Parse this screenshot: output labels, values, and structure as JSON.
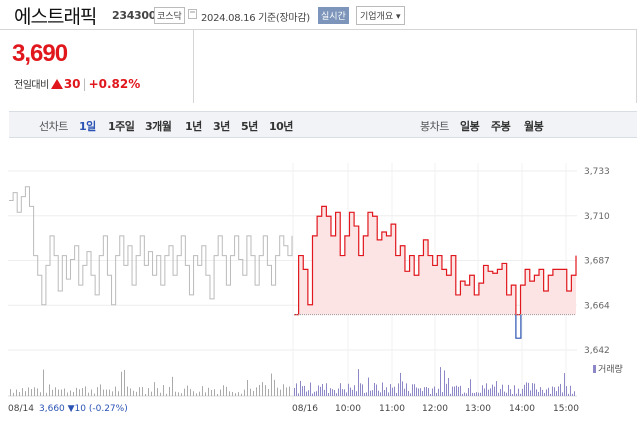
{
  "header": {
    "stock_name": "에스트래픽",
    "stock_code": "234300",
    "market": "코스닥",
    "base_date": "2024.08.16 기준(장마감)",
    "realtime_label": "실시간",
    "company_label": "기업개요 ▾"
  },
  "price_panel": {
    "price": "3,690",
    "change_label": "전일대비",
    "change_amount": "30",
    "change_percent": "+0.82%"
  },
  "period_bar": {
    "line_chart_label": "선차트",
    "tabs": [
      "1일",
      "1주일",
      "3개월",
      "1년",
      "3년",
      "5년",
      "10년"
    ],
    "active_tab": "1일",
    "candle_chart_label": "봉차트",
    "candle_tabs": [
      "일봉",
      "주봉",
      "월봉"
    ]
  },
  "colors": {
    "up": "#e0171d",
    "down": "#2b53b4",
    "prev_day_line": "#bbbbbb",
    "area_fill": "#fde4e4",
    "volume": "#8c87c6"
  },
  "chart_data": {
    "type": "line",
    "y_ticks": [
      "3,733",
      "3,710",
      "3,687",
      "3,664",
      "3,642"
    ],
    "ylim": [
      3642,
      3733
    ],
    "base_price": 3660,
    "x_tick_labels": [
      "08/14",
      "08/16",
      "10:00",
      "11:00",
      "12:00",
      "13:00",
      "14:00",
      "15:00"
    ],
    "prev_day_note": "3,660 ▼10 (-0.27%)",
    "volume_label": "거래량",
    "prev_day_series": [
      3718,
      3722,
      3712,
      3720,
      3725,
      3715,
      3690,
      3680,
      3665,
      3685,
      3700,
      3690,
      3672,
      3690,
      3678,
      3688,
      3695,
      3675,
      3685,
      3692,
      3680,
      3670,
      3690,
      3700,
      3680,
      3665,
      3690,
      3700,
      3685,
      3695,
      3675,
      3690,
      3700,
      3685,
      3692,
      3680,
      3690,
      3675,
      3690,
      3695,
      3680,
      3690,
      3700,
      3685,
      3670,
      3690,
      3685,
      3695,
      3680,
      3668,
      3690,
      3700,
      3690,
      3675,
      3690,
      3700,
      3688,
      3680,
      3700,
      3690,
      3675,
      3690,
      3700,
      3685,
      3675,
      3690,
      3700,
      3695,
      3690,
      3700
    ],
    "today_series": [
      3660,
      3690,
      3683,
      3665,
      3700,
      3710,
      3715,
      3710,
      3700,
      3712,
      3690,
      3700,
      3712,
      3705,
      3690,
      3700,
      3712,
      3710,
      3698,
      3702,
      3700,
      3706,
      3690,
      3695,
      3682,
      3690,
      3680,
      3690,
      3698,
      3690,
      3685,
      3690,
      3683,
      3680,
      3690,
      3670,
      3677,
      3675,
      3680,
      3670,
      3676,
      3685,
      3682,
      3681,
      3683,
      3686,
      3670,
      3675,
      3660,
      3675,
      3683,
      3677,
      3680,
      3683,
      3672,
      3680,
      3683,
      3683,
      3683,
      3672,
      3680,
      3690
    ],
    "dip_value": 3648
  }
}
